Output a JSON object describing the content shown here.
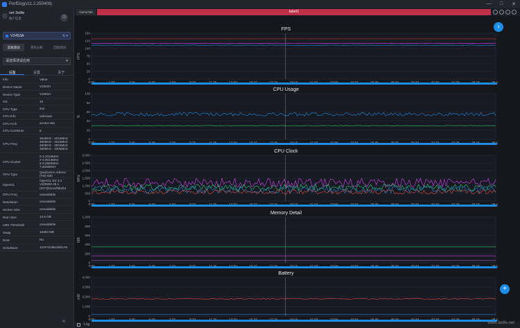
{
  "window": {
    "title": "PerfDog(v11.2.250408)",
    "controls": [
      "—",
      "□",
      "✕"
    ]
  },
  "user": {
    "name": "net 3elife",
    "sub": "账户信息"
  },
  "device": {
    "name": "V2453A",
    "icons": "⇅ ▾"
  },
  "mode_tabs": [
    "常规测试",
    "冒险分析",
    "回放测试"
  ],
  "app_select": {
    "placeholder": "请选择测试应用"
  },
  "sub_tabs": [
    "设备",
    "设置",
    "关于"
  ],
  "info": [
    {
      "k": "Info",
      "v": "Value"
    },
    {
      "k": "Device Name",
      "v": "V2453A"
    },
    {
      "k": "Device Type",
      "v": "V2453A"
    },
    {
      "k": "OS",
      "v": "15"
    },
    {
      "k": "CPU Type",
      "v": "sun"
    },
    {
      "k": "CPU Info",
      "v": "unknown"
    },
    {
      "k": "CPU Arch",
      "v": "arm64-v8a"
    },
    {
      "k": "CPU CoreNum",
      "v": "8"
    },
    {
      "k": "CPU Freq",
      "v": "364MHz - 2016MHz\n480MHz - 2016MHz\n480MHz - 3004MHz\n480MHz - 3206MHz"
    },
    {
      "k": "CPU Cluster",
      "v": "0-1:2016MHz\n2-4:3014MHz\n5-6:2880MHz\n7:3206MHz"
    },
    {
      "k": "GPU Type",
      "v": "Qualcomm Adreno\n(TM) 830"
    },
    {
      "k": "OpenGL",
      "v": "OpenGL ES 3.2\nV@0800.25.1\n(GIT@412ef6b2b4"
    },
    {
      "k": "GPU Freq",
      "v": "unavailable"
    },
    {
      "k": "Resolution",
      "v": "unavailable"
    },
    {
      "k": "Screen Size",
      "v": "unavailable"
    },
    {
      "k": "Ram Size",
      "v": "14.9 GB"
    },
    {
      "k": "LMK Threshold",
      "v": "unavailable"
    },
    {
      "k": "Swap",
      "v": "16383 MB"
    },
    {
      "k": "Root",
      "v": "No"
    },
    {
      "k": "SerialNum",
      "v": "10AF410BL5001A9"
    }
  ],
  "tabs": {
    "game": "GameTab",
    "label": "label1"
  },
  "log_label": "Log",
  "watermark": "www.3elife.net",
  "time_ticks": [
    "0:00",
    "1:53",
    "3:46",
    "5:45",
    "7:40",
    "9:33",
    "11:26",
    "13:20",
    "15:27",
    "17:15",
    "19:10",
    "21:03",
    "22:56",
    "24:52",
    "26:45",
    "28:45",
    "30:40",
    "32:33",
    "34:26",
    "36:18",
    "38:16"
  ],
  "panels": [
    {
      "title": "FPS",
      "ylabel": "FPS",
      "ticks": [
        "150",
        "125",
        "100",
        "75",
        "50",
        "25",
        "0"
      ]
    },
    {
      "title": "CPU Usage",
      "ylabel": "%",
      "ticks": [
        "100",
        "80",
        "60",
        "40",
        "20",
        "0"
      ]
    },
    {
      "title": "CPU Clock",
      "ylabel": "MHz",
      "ticks": [
        "3,000",
        "2,500",
        "2,000",
        "1,500",
        "1,000",
        "500",
        "0"
      ]
    },
    {
      "title": "Memory Detail",
      "ylabel": "MB",
      "ticks": [
        "1,000",
        "800",
        "600",
        "400",
        "200",
        "0"
      ]
    },
    {
      "title": "Battery",
      "ylabel": "mW",
      "ticks": [
        "4,000",
        "3,000",
        "2,000",
        "1,000",
        "0"
      ]
    }
  ],
  "colors": {
    "accent": "#1d8ee6",
    "label_bar": "#bf3149"
  }
}
